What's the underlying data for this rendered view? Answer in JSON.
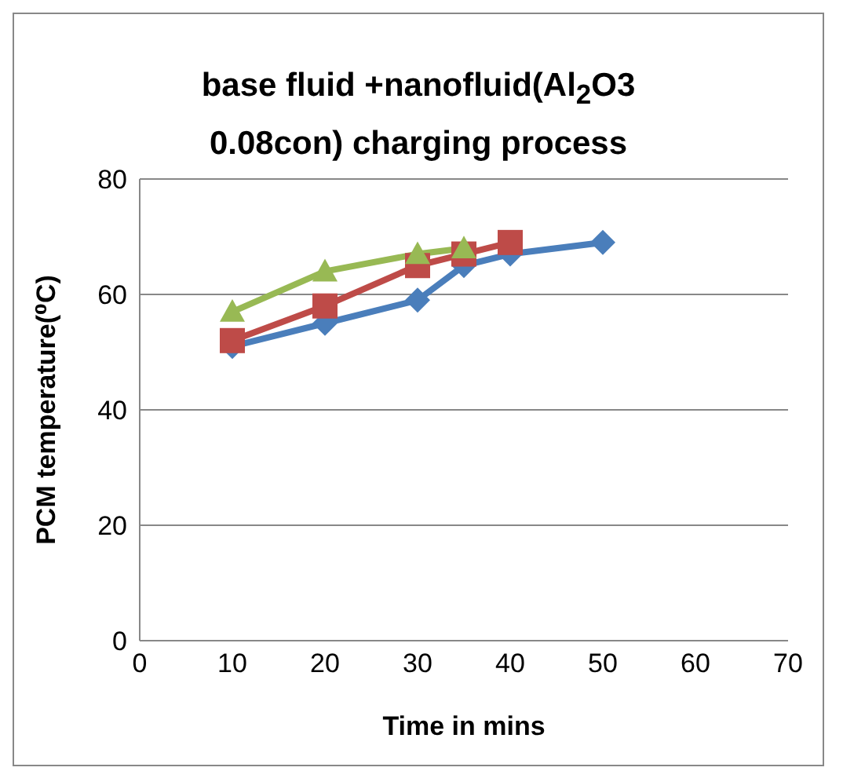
{
  "chart_data": {
    "type": "line",
    "title": "base fluid +nanofluid(Al$_{2}$O3 0.08con) charging process",
    "xlabel": "Time in mins",
    "ylabel": "PCM temperature(⁰C)",
    "xlim": [
      0,
      70
    ],
    "xticks": [
      0,
      10,
      20,
      30,
      40,
      50,
      60,
      70
    ],
    "ylim": [
      0,
      80
    ],
    "yticks": [
      0,
      20,
      40,
      60,
      80
    ],
    "grid": "y",
    "series": [
      {
        "color": "#4a7ebb",
        "marker": "diamond",
        "x": [
          10,
          20,
          30,
          35,
          40,
          50
        ],
        "values": [
          51,
          55,
          59,
          65,
          67,
          69
        ]
      },
      {
        "color": "#be4b48",
        "marker": "square",
        "x": [
          10,
          20,
          30,
          35,
          40
        ],
        "values": [
          52,
          58,
          65,
          67,
          69
        ]
      },
      {
        "color": "#98b954",
        "marker": "triangle",
        "x": [
          10,
          20,
          30,
          35
        ],
        "values": [
          57,
          64,
          67,
          68
        ]
      }
    ]
  }
}
